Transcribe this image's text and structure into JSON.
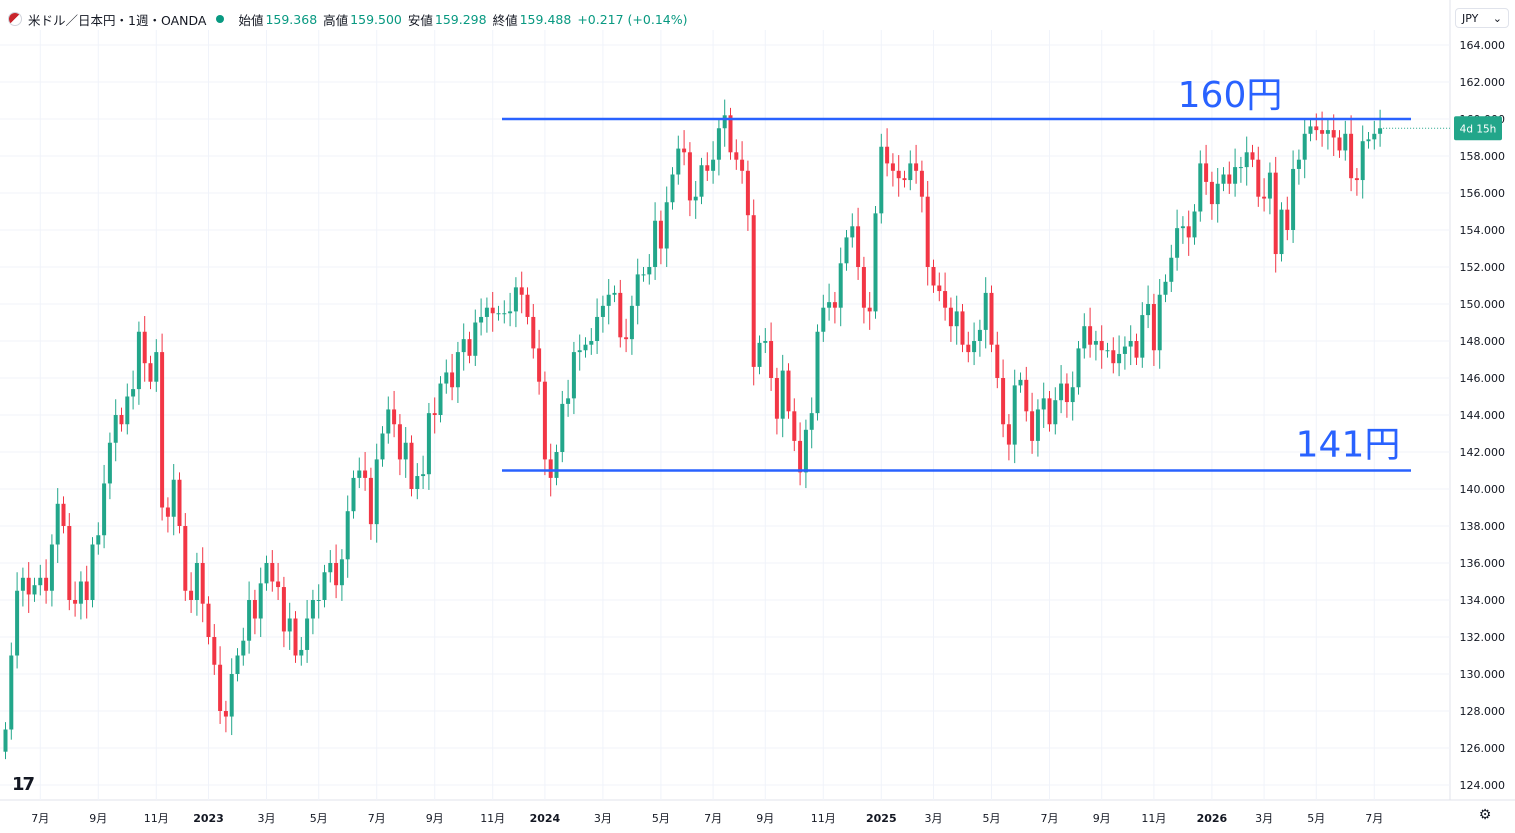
{
  "header": {
    "title": "米ドル／日本円・1週・OANDA",
    "open_label": "始値",
    "open": "159.368",
    "high_label": "高値",
    "high": "159.500",
    "low_label": "安値",
    "low": "159.298",
    "close_label": "終値",
    "close": "159.488",
    "change": "+0.217 (+0.14%)"
  },
  "currency_selector": {
    "label": "JPY",
    "icon": "chevron-down-icon"
  },
  "countdown_badge": "4d 15h",
  "annotations": [
    {
      "text": "160円",
      "level": 160.0
    },
    {
      "text": "141円",
      "level": 141.0
    }
  ],
  "colors": {
    "up": "#22a68a",
    "down": "#f23645",
    "hline": "#2962ff",
    "annot": "#2962ff",
    "grid": "#f0f3fa"
  },
  "chart_data": {
    "type": "candlestick",
    "ylim": [
      123,
      165
    ],
    "ytick_values": [
      124,
      126,
      128,
      130,
      132,
      134,
      136,
      138,
      140,
      142,
      144,
      146,
      148,
      150,
      152,
      154,
      156,
      158,
      160,
      162,
      164
    ],
    "ytick_labels": [
      "124.000",
      "126.000",
      "128.000",
      "130.000",
      "132.000",
      "134.000",
      "136.000",
      "138.000",
      "140.000",
      "142.000",
      "144.000",
      "146.000",
      "148.000",
      "150.000",
      "152.000",
      "154.000",
      "156.000",
      "158.000",
      "160.000",
      "162.000",
      "164.000"
    ],
    "xticks": [
      {
        "label": "7月",
        "bar": 6
      },
      {
        "label": "9月",
        "bar": 16
      },
      {
        "label": "11月",
        "bar": 26
      },
      {
        "label": "2023",
        "bar": 35
      },
      {
        "label": "3月",
        "bar": 45
      },
      {
        "label": "5月",
        "bar": 54
      },
      {
        "label": "7月",
        "bar": 64
      },
      {
        "label": "9月",
        "bar": 74
      },
      {
        "label": "11月",
        "bar": 84
      },
      {
        "label": "2024",
        "bar": 93
      },
      {
        "label": "3月",
        "bar": 103
      },
      {
        "label": "5月",
        "bar": 113
      },
      {
        "label": "7月",
        "bar": 122
      },
      {
        "label": "9月",
        "bar": 131
      },
      {
        "label": "11月",
        "bar": 141
      },
      {
        "label": "2025",
        "bar": 151
      },
      {
        "label": "3月",
        "bar": 160
      },
      {
        "label": "5月",
        "bar": 170
      },
      {
        "label": "7月",
        "bar": 180
      },
      {
        "label": "9月",
        "bar": 189
      },
      {
        "label": "11月",
        "bar": 198
      },
      {
        "label": "2026",
        "bar": 208
      },
      {
        "label": "3月",
        "bar": 217
      },
      {
        "label": "5月",
        "bar": 226
      },
      {
        "label": "7月",
        "bar": 236
      }
    ],
    "closes": [
      127.0,
      131.0,
      134.5,
      135.2,
      134.3,
      134.8,
      135.2,
      134.5,
      137.0,
      139.2,
      138.0,
      134.0,
      133.8,
      135.0,
      134.0,
      137.0,
      137.5,
      140.3,
      142.5,
      144.0,
      143.5,
      145.0,
      145.4,
      148.5,
      146.8,
      145.8,
      147.4,
      139.0,
      138.5,
      140.5,
      138.0,
      134.5,
      134.0,
      136.0,
      133.8,
      132.0,
      130.5,
      128.0,
      127.7,
      130.0,
      131.0,
      131.8,
      134.0,
      133.0,
      134.9,
      136.0,
      135.0,
      134.7,
      132.3,
      133.0,
      131.0,
      131.3,
      133.0,
      134.0,
      134.0,
      135.5,
      136.0,
      134.8,
      136.2,
      138.8,
      140.6,
      141.0,
      140.6,
      138.1,
      141.6,
      143.0,
      144.3,
      143.5,
      141.6,
      142.5,
      140.0,
      140.7,
      140.8,
      144.1,
      144.0,
      145.7,
      146.3,
      145.5,
      147.4,
      148.1,
      147.2,
      149.0,
      149.3,
      149.8,
      149.5,
      149.5,
      149.5,
      149.6,
      150.9,
      150.5,
      149.3,
      147.6,
      145.8,
      141.6,
      140.6,
      142.0,
      144.6,
      144.9,
      147.4,
      147.5,
      147.8,
      148.0,
      149.3,
      149.9,
      150.5,
      150.6,
      148.2,
      148.1,
      149.9,
      151.6,
      151.6,
      152.0,
      154.5,
      153.0,
      155.5,
      157.0,
      158.4,
      158.2,
      155.6,
      155.8,
      157.5,
      157.2,
      157.8,
      159.5,
      160.2,
      158.2,
      157.8,
      157.2,
      154.8,
      146.6,
      147.9,
      148.0,
      146.0,
      143.8,
      146.4,
      144.2,
      142.6,
      140.9,
      143.2,
      144.1,
      148.5,
      149.8,
      150.1,
      149.8,
      152.2,
      153.6,
      154.2,
      152.0,
      149.8,
      149.6,
      154.9,
      158.5,
      157.6,
      157.2,
      156.8,
      156.7,
      157.6,
      157.2,
      155.8,
      152.0,
      151.0,
      150.7,
      149.8,
      148.8,
      149.6,
      147.8,
      147.4,
      148.0,
      148.6,
      150.6,
      147.8,
      146.0,
      143.5,
      142.4,
      145.6,
      145.9,
      144.2,
      142.6,
      144.3,
      144.9,
      143.5,
      144.8,
      145.7,
      144.7,
      145.5,
      147.6,
      148.8,
      147.8,
      148.0,
      147.5,
      147.5,
      146.8,
      147.3,
      147.7,
      148.0,
      147.1,
      149.4,
      150.0,
      147.5,
      150.5,
      151.2,
      152.5,
      154.1,
      154.2,
      153.6,
      155.0,
      157.6,
      156.6,
      155.4,
      156.5,
      157.0,
      156.5,
      157.4,
      157.4,
      158.2,
      157.8,
      155.8,
      155.7,
      157.1,
      152.7,
      155.1,
      154.0,
      157.3,
      157.8,
      159.2,
      159.6,
      159.4,
      159.2,
      159.4,
      159.0,
      158.3,
      159.2,
      156.8,
      156.7,
      158.8,
      158.9,
      159.2,
      159.5
    ]
  }
}
